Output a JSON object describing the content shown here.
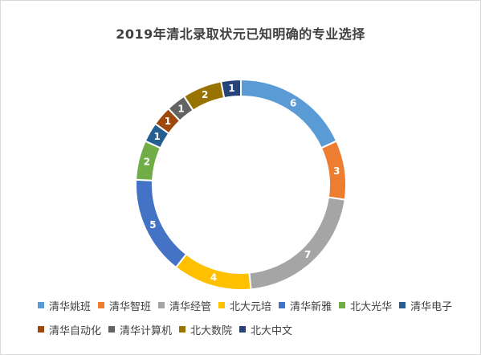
{
  "chart_data": {
    "type": "pie",
    "variant": "donut",
    "title": "2019年清北录取状元已知明确的专业选择",
    "categories": [
      "清华姚班",
      "清华智班",
      "清华经管",
      "北大元培",
      "清华新雅",
      "北大光华",
      "清华电子",
      "清华自动化",
      "清华计算机",
      "北大数院",
      "北大中文"
    ],
    "values": [
      6,
      3,
      7,
      4,
      5,
      2,
      1,
      1,
      1,
      2,
      1
    ],
    "colors": [
      "#5b9bd5",
      "#ed7d31",
      "#a5a5a5",
      "#ffc000",
      "#4472c4",
      "#70ad47",
      "#255e91",
      "#9e480e",
      "#636363",
      "#997300",
      "#264478"
    ],
    "legend_position": "bottom"
  }
}
